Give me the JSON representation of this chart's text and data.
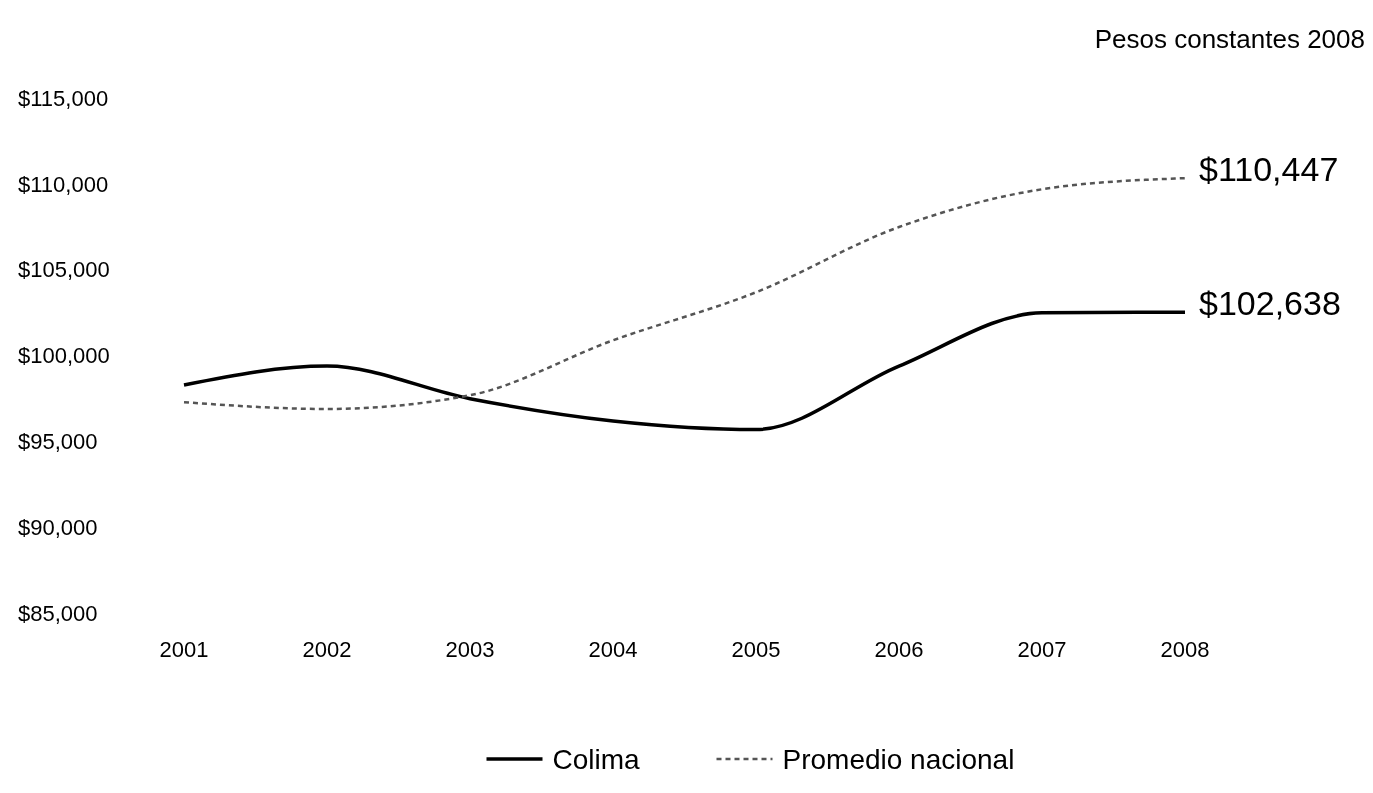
{
  "chart_data": {
    "type": "line",
    "subtitle": "Pesos constantes 2008",
    "categories": [
      "2001",
      "2002",
      "2003",
      "2004",
      "2005",
      "2006",
      "2007",
      "2008"
    ],
    "series": [
      {
        "name": "Colima",
        "color": "#000000",
        "line_style": "solid",
        "values": [
          98400,
          99500,
          97600,
          96300,
          95800,
          99500,
          102600,
          102638
        ],
        "value_labels": [
          null,
          null,
          null,
          null,
          null,
          null,
          null,
          "$102,638"
        ]
      },
      {
        "name": "Promedio nacional",
        "color": "#555555",
        "line_style": "dotted",
        "values": [
          97400,
          97000,
          97800,
          101000,
          103800,
          107600,
          109800,
          110447
        ],
        "value_labels": [
          null,
          null,
          null,
          null,
          null,
          null,
          null,
          "$110,447"
        ]
      }
    ],
    "ylim": [
      85000,
      115000
    ],
    "yticks": [
      {
        "value": 85000,
        "label": "$85,000"
      },
      {
        "value": 90000,
        "label": "$90,000"
      },
      {
        "value": 95000,
        "label": "$95,000"
      },
      {
        "value": 100000,
        "label": "$100,000"
      },
      {
        "value": 105000,
        "label": "$105,000"
      },
      {
        "value": 110000,
        "label": "$110,000"
      },
      {
        "value": 115000,
        "label": "$115,000"
      }
    ],
    "grid": false,
    "legend": "bottom"
  }
}
